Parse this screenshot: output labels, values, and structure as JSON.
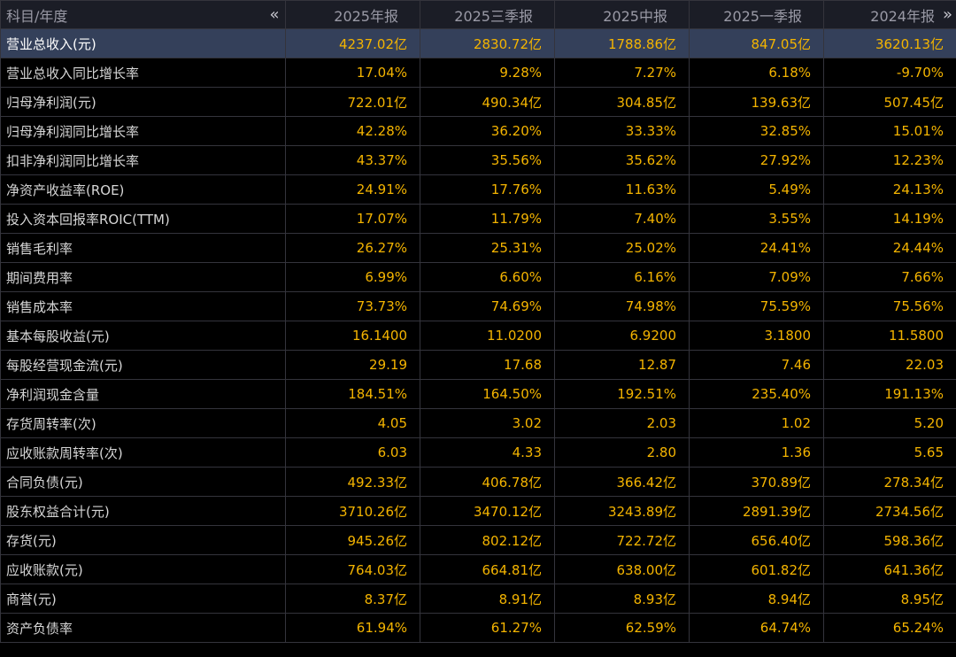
{
  "header": {
    "label": "科目/年度",
    "prev_icon": "«",
    "next_icon": "»",
    "periods": [
      "2025年报",
      "2025三季报",
      "2025中报",
      "2025一季报",
      "2024年报"
    ]
  },
  "rows": [
    {
      "label": "营业总收入(元)",
      "values": [
        "4237.02亿",
        "2830.72亿",
        "1788.86亿",
        "847.05亿",
        "3620.13亿"
      ],
      "selected": true
    },
    {
      "label": "营业总收入同比增长率",
      "values": [
        "17.04%",
        "9.28%",
        "7.27%",
        "6.18%",
        "-9.70%"
      ]
    },
    {
      "label": "归母净利润(元)",
      "values": [
        "722.01亿",
        "490.34亿",
        "304.85亿",
        "139.63亿",
        "507.45亿"
      ]
    },
    {
      "label": "归母净利润同比增长率",
      "values": [
        "42.28%",
        "36.20%",
        "33.33%",
        "32.85%",
        "15.01%"
      ]
    },
    {
      "label": "扣非净利润同比增长率",
      "values": [
        "43.37%",
        "35.56%",
        "35.62%",
        "27.92%",
        "12.23%"
      ]
    },
    {
      "label": "净资产收益率(ROE)",
      "values": [
        "24.91%",
        "17.76%",
        "11.63%",
        "5.49%",
        "24.13%"
      ]
    },
    {
      "label": "投入资本回报率ROIC(TTM)",
      "values": [
        "17.07%",
        "11.79%",
        "7.40%",
        "3.55%",
        "14.19%"
      ]
    },
    {
      "label": "销售毛利率",
      "values": [
        "26.27%",
        "25.31%",
        "25.02%",
        "24.41%",
        "24.44%"
      ]
    },
    {
      "label": "期间费用率",
      "values": [
        "6.99%",
        "6.60%",
        "6.16%",
        "7.09%",
        "7.66%"
      ]
    },
    {
      "label": "销售成本率",
      "values": [
        "73.73%",
        "74.69%",
        "74.98%",
        "75.59%",
        "75.56%"
      ]
    },
    {
      "label": "基本每股收益(元)",
      "values": [
        "16.1400",
        "11.0200",
        "6.9200",
        "3.1800",
        "11.5800"
      ]
    },
    {
      "label": "每股经营现金流(元)",
      "values": [
        "29.19",
        "17.68",
        "12.87",
        "7.46",
        "22.03"
      ]
    },
    {
      "label": "净利润现金含量",
      "values": [
        "184.51%",
        "164.50%",
        "192.51%",
        "235.40%",
        "191.13%"
      ]
    },
    {
      "label": "存货周转率(次)",
      "values": [
        "4.05",
        "3.02",
        "2.03",
        "1.02",
        "5.20"
      ]
    },
    {
      "label": "应收账款周转率(次)",
      "values": [
        "6.03",
        "4.33",
        "2.80",
        "1.36",
        "5.65"
      ]
    },
    {
      "label": "合同负债(元)",
      "values": [
        "492.33亿",
        "406.78亿",
        "366.42亿",
        "370.89亿",
        "278.34亿"
      ]
    },
    {
      "label": "股东权益合计(元)",
      "values": [
        "3710.26亿",
        "3470.12亿",
        "3243.89亿",
        "2891.39亿",
        "2734.56亿"
      ]
    },
    {
      "label": "存货(元)",
      "values": [
        "945.26亿",
        "802.12亿",
        "722.72亿",
        "656.40亿",
        "598.36亿"
      ]
    },
    {
      "label": "应收账款(元)",
      "values": [
        "764.03亿",
        "664.81亿",
        "638.00亿",
        "601.82亿",
        "641.36亿"
      ]
    },
    {
      "label": "商誉(元)",
      "values": [
        "8.37亿",
        "8.91亿",
        "8.93亿",
        "8.94亿",
        "8.95亿"
      ]
    },
    {
      "label": "资产负债率",
      "values": [
        "61.94%",
        "61.27%",
        "62.59%",
        "64.74%",
        "65.24%"
      ]
    }
  ]
}
